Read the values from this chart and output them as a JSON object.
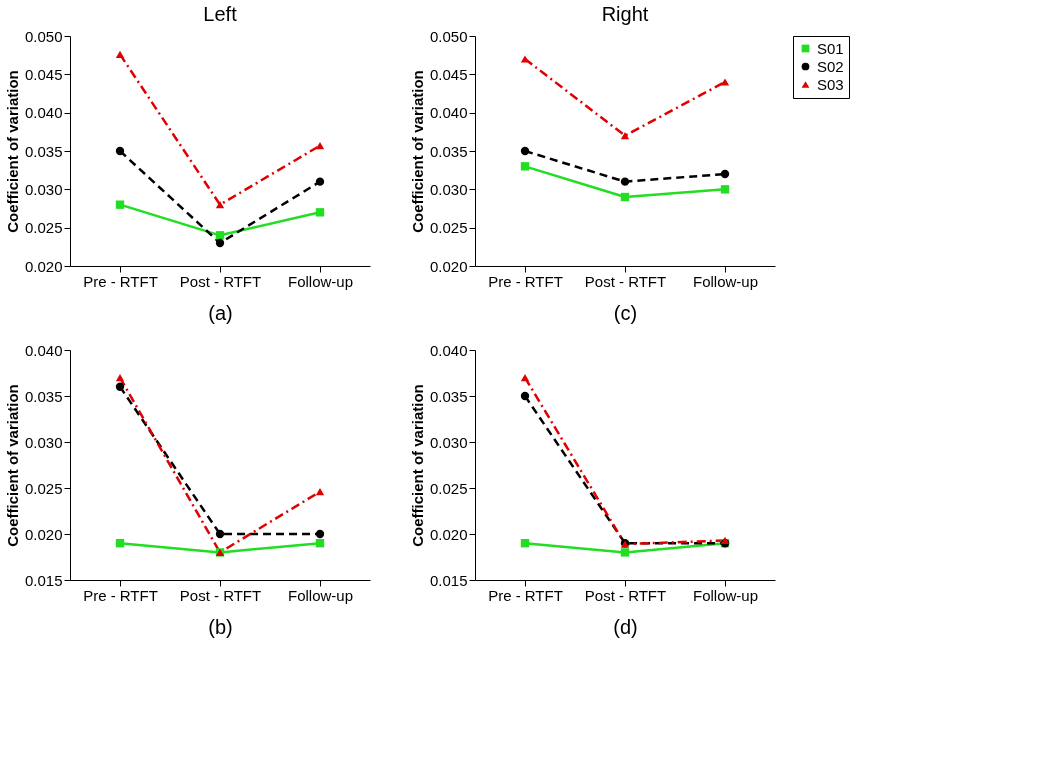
{
  "chart_data": [
    {
      "type": "line",
      "title": "Left",
      "xlabel": "(a)",
      "ylabel": "Coefficient of variation",
      "categories": [
        "Pre - RTFT",
        "Post - RTFT",
        "Follow-up"
      ],
      "ylim": [
        0.02,
        0.05
      ],
      "yticks": [
        {
          "value": 0.02,
          "label": "0.020"
        },
        {
          "value": 0.025,
          "label": "0.025"
        },
        {
          "value": 0.03,
          "label": "0.030"
        },
        {
          "value": 0.035,
          "label": "0.035"
        },
        {
          "value": 0.04,
          "label": "0.040"
        },
        {
          "value": 0.045,
          "label": "0.045"
        },
        {
          "value": 0.05,
          "label": "0.050"
        }
      ],
      "grid": false,
      "legend": "top right",
      "series": [
        {
          "name": "S01",
          "color": "#22dd22",
          "marker": "square",
          "line_style": "solid",
          "values": [
            0.028,
            0.024,
            0.027
          ]
        },
        {
          "name": "S02",
          "color": "#000000",
          "marker": "circle",
          "line_style": "dashed",
          "values": [
            0.035,
            0.023,
            0.031
          ]
        },
        {
          "name": "S03",
          "color": "#e00000",
          "marker": "triangle",
          "line_style": "dashdot",
          "values": [
            0.0476,
            0.028,
            0.0357
          ]
        }
      ]
    },
    {
      "type": "line",
      "title": "Right",
      "xlabel": "(c)",
      "ylabel": "Coefficient of variation",
      "categories": [
        "Pre - RTFT",
        "Post - RTFT",
        "Follow-up"
      ],
      "ylim": [
        0.02,
        0.05
      ],
      "yticks": [
        {
          "value": 0.02,
          "label": "0.020"
        },
        {
          "value": 0.025,
          "label": "0.025"
        },
        {
          "value": 0.03,
          "label": "0.030"
        },
        {
          "value": 0.035,
          "label": "0.035"
        },
        {
          "value": 0.04,
          "label": "0.040"
        },
        {
          "value": 0.045,
          "label": "0.045"
        },
        {
          "value": 0.05,
          "label": "0.050"
        }
      ],
      "grid": false,
      "series": [
        {
          "color": "#22dd22",
          "marker": "square",
          "line_style": "solid",
          "values": [
            0.033,
            0.029,
            0.03
          ]
        },
        {
          "color": "#000000",
          "marker": "circle",
          "line_style": "dashed",
          "values": [
            0.035,
            0.031,
            0.032
          ]
        },
        {
          "color": "#e00000",
          "marker": "triangle",
          "line_style": "dashdot",
          "values": [
            0.047,
            0.037,
            0.044
          ]
        }
      ]
    },
    {
      "type": "line",
      "xlabel": "(b)",
      "ylabel": "Coefficient of variation",
      "categories": [
        "Pre - RTFT",
        "Post - RTFT",
        "Follow-up"
      ],
      "ylim": [
        0.015,
        0.04
      ],
      "yticks": [
        {
          "value": 0.015,
          "label": "0.015"
        },
        {
          "value": 0.02,
          "label": "0.020"
        },
        {
          "value": 0.025,
          "label": "0.025"
        },
        {
          "value": 0.03,
          "label": "0.030"
        },
        {
          "value": 0.035,
          "label": "0.035"
        },
        {
          "value": 0.04,
          "label": "0.040"
        }
      ],
      "grid": false,
      "series": [
        {
          "color": "#22dd22",
          "marker": "square",
          "line_style": "solid",
          "values": [
            0.019,
            0.018,
            0.019
          ]
        },
        {
          "color": "#000000",
          "marker": "circle",
          "line_style": "dashed",
          "values": [
            0.036,
            0.02,
            0.02
          ]
        },
        {
          "color": "#e00000",
          "marker": "triangle",
          "line_style": "dashdot",
          "values": [
            0.037,
            0.018,
            0.0246
          ]
        }
      ]
    },
    {
      "type": "line",
      "xlabel": "(d)",
      "ylabel": "Coefficient of variation",
      "categories": [
        "Pre - RTFT",
        "Post - RTFT",
        "Follow-up"
      ],
      "ylim": [
        0.015,
        0.04
      ],
      "yticks": [
        {
          "value": 0.015,
          "label": "0.015"
        },
        {
          "value": 0.02,
          "label": "0.020"
        },
        {
          "value": 0.025,
          "label": "0.025"
        },
        {
          "value": 0.03,
          "label": "0.030"
        },
        {
          "value": 0.035,
          "label": "0.035"
        },
        {
          "value": 0.04,
          "label": "0.040"
        }
      ],
      "grid": false,
      "series": [
        {
          "color": "#22dd22",
          "marker": "square",
          "line_style": "solid",
          "values": [
            0.019,
            0.018,
            0.019
          ]
        },
        {
          "color": "#000000",
          "marker": "circle",
          "line_style": "dashed",
          "values": [
            0.035,
            0.019,
            0.019
          ]
        },
        {
          "color": "#e00000",
          "marker": "triangle",
          "line_style": "dashdot",
          "values": [
            0.037,
            0.0189,
            0.0193
          ]
        }
      ]
    }
  ]
}
